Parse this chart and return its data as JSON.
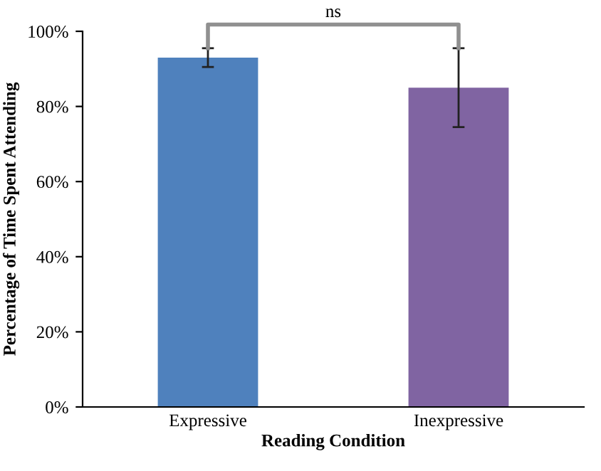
{
  "chart_data": {
    "type": "bar",
    "xlabel": "Reading Condition",
    "ylabel": "Percentage of Time Spent Attending",
    "categories": [
      "Expressive",
      "Inexpressive"
    ],
    "values": [
      93,
      85
    ],
    "errors": [
      2.5,
      10.5
    ],
    "colors": [
      "#4f81bd",
      "#8064a2"
    ],
    "ylim": [
      0,
      100
    ],
    "yticks": [
      {
        "value": 0,
        "label": "0%"
      },
      {
        "value": 20,
        "label": "20%"
      },
      {
        "value": 40,
        "label": "40%"
      },
      {
        "value": 60,
        "label": "60%"
      },
      {
        "value": 80,
        "label": "80%"
      },
      {
        "value": 100,
        "label": "100%"
      }
    ],
    "grid": false,
    "legend": false,
    "annotations": [
      "ns"
    ]
  }
}
